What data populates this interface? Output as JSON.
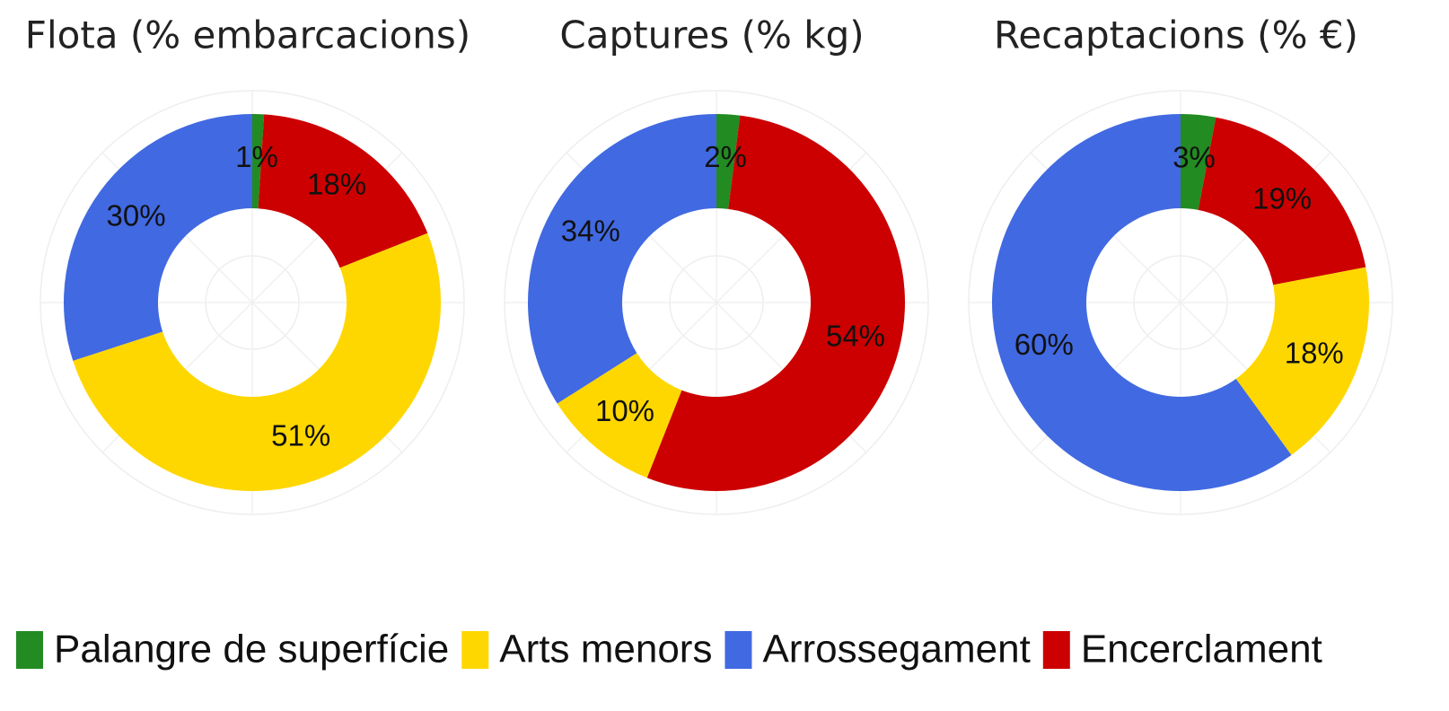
{
  "chart_data": [
    {
      "type": "pie",
      "title": "Flota (% embarcacions)",
      "categories": [
        "Palangre de superfície",
        "Encerclament",
        "Arts menors",
        "Arrossegament"
      ],
      "colors": [
        "#228b22",
        "#cc0000",
        "#ffd700",
        "#4169e1"
      ],
      "values": [
        1,
        18,
        51,
        30
      ],
      "value_labels": [
        "1%",
        "18%",
        "51%",
        "30%"
      ]
    },
    {
      "type": "pie",
      "title": "Captures (% kg)",
      "categories": [
        "Palangre de superfície",
        "Encerclament",
        "Arts menors",
        "Arrossegament"
      ],
      "colors": [
        "#228b22",
        "#cc0000",
        "#ffd700",
        "#4169e1"
      ],
      "values": [
        2,
        54,
        10,
        34
      ],
      "value_labels": [
        "2%",
        "54%",
        "10%",
        "34%"
      ]
    },
    {
      "type": "pie",
      "title": "Recaptacions (% €)",
      "categories": [
        "Palangre de superfície",
        "Encerclament",
        "Arts menors",
        "Arrossegament"
      ],
      "colors": [
        "#228b22",
        "#cc0000",
        "#ffd700",
        "#4169e1"
      ],
      "values": [
        3,
        19,
        18,
        60
      ],
      "value_labels": [
        "3%",
        "19%",
        "18%",
        "60%"
      ]
    }
  ],
  "legend_order": [
    0,
    2,
    3,
    1
  ]
}
